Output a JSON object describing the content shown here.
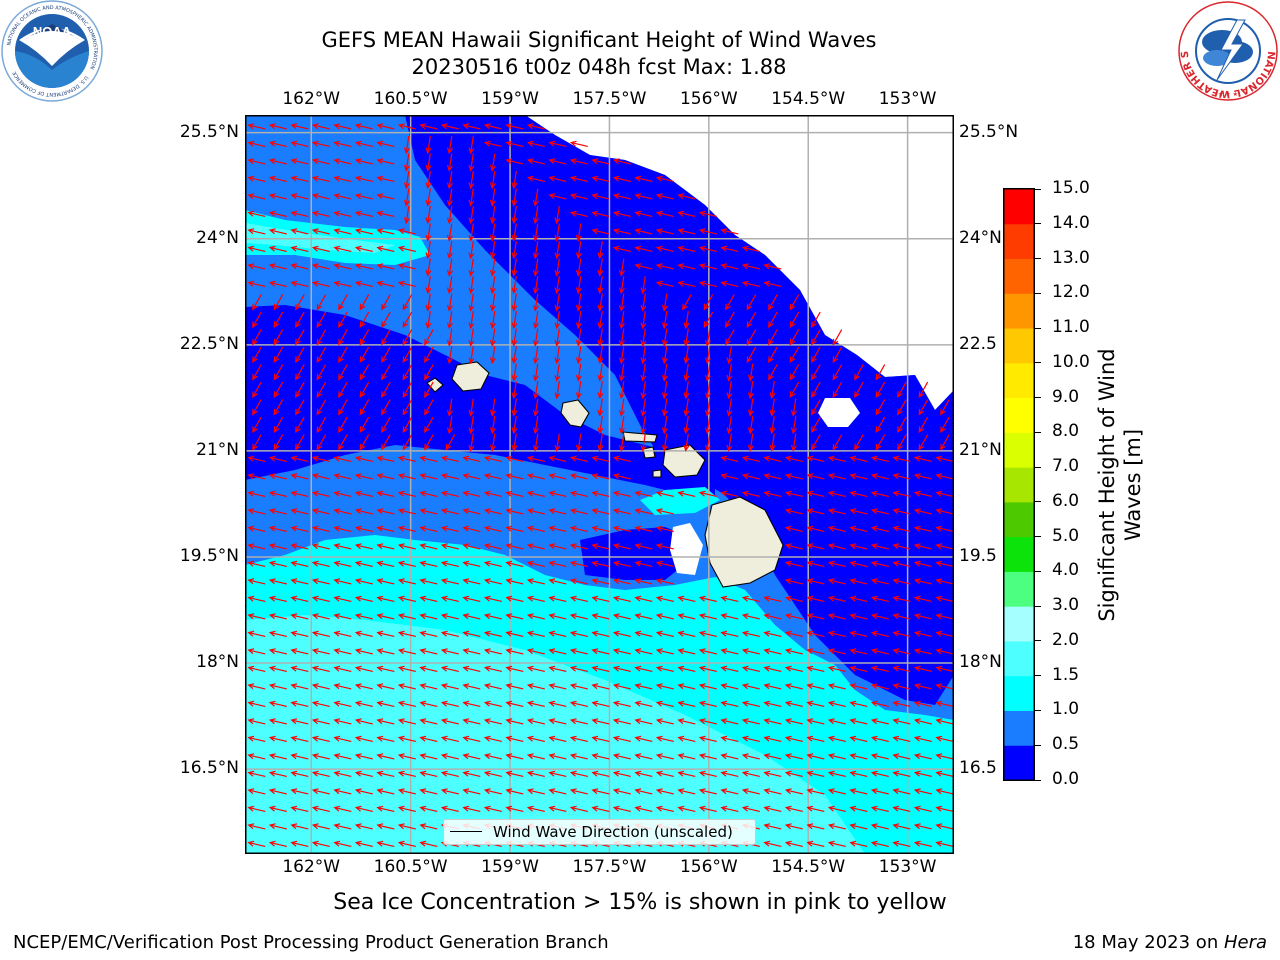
{
  "header": {
    "title": "GEFS MEAN Hawaii Significant Height of Wind Waves",
    "subtitle": "20230516 t00z 048h fcst   Max: 1.88"
  },
  "logos": {
    "noaa_text": "NOAA",
    "noaa_ring_text": "NATIONAL OCEANIC AND ATMOSPHERIC ADMINISTRATION",
    "noaa_bottom_text": "U.S. DEPARTMENT OF COMMERCE",
    "nws_ring_text": "NATIONAL WEATHER SERVICE"
  },
  "map": {
    "lon_labels": [
      "162°W",
      "160.5°W",
      "159°W",
      "157.5°W",
      "156°W",
      "154.5°W",
      "153°W"
    ],
    "lon_values": [
      -162,
      -160.5,
      -159,
      -157.5,
      -156,
      -154.5,
      -153
    ],
    "lat_labels_left": [
      "25.5°N",
      "24°N",
      "22.5°N",
      "21°N",
      "19.5°N",
      "18°N",
      "16.5°N"
    ],
    "lat_labels_right": [
      "25.5°N",
      "24°N",
      "22.5",
      "21°N",
      "19.5",
      "18°N",
      "16.5"
    ],
    "lat_values": [
      25.5,
      24,
      22.5,
      21,
      19.5,
      18,
      16.5
    ],
    "extent": {
      "lon_min": -163.0,
      "lon_max": -152.3,
      "lat_min": 15.3,
      "lat_max": 25.75
    },
    "grid": true,
    "legend_label": "Wind Wave Direction (unscaled)",
    "arrow_color": "#ff0000",
    "land_color": "#efeedd"
  },
  "colorbar": {
    "label": "Significant Height of Wind Waves [m]",
    "label_line1": "Significant Height of Wind",
    "label_line2": "Waves [m]",
    "ticks": [
      "0.0",
      "0.5",
      "1.0",
      "1.5",
      "2.0",
      "3.0",
      "4.0",
      "5.0",
      "6.0",
      "7.0",
      "8.0",
      "9.0",
      "10.0",
      "11.0",
      "12.0",
      "13.0",
      "14.0",
      "15.0"
    ],
    "colors": [
      "#0000ff",
      "#1a7dff",
      "#00ffff",
      "#4dffff",
      "#a6ffff",
      "#4cff80",
      "#0be30b",
      "#4dc900",
      "#a6e600",
      "#d9ff00",
      "#ffff00",
      "#ffea00",
      "#ffc800",
      "#ff9600",
      "#ff6400",
      "#ff3c00",
      "#ff0000"
    ]
  },
  "subtitle_bottom": "Sea Ice Concentration > 15% is shown in pink to yellow",
  "footer": {
    "left": "NCEP/EMC/Verification Post Processing Product Generation Branch",
    "right_date": "18 May 2023 on ",
    "right_host": "Hera"
  }
}
